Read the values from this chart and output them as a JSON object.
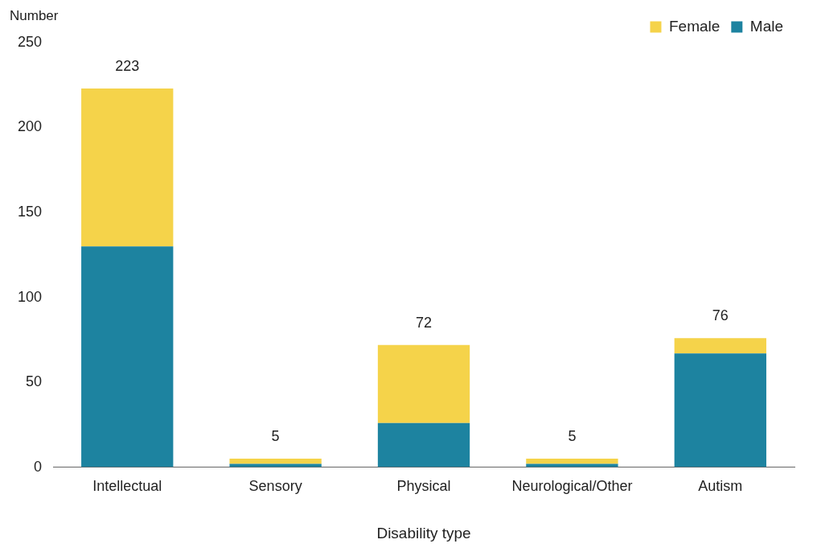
{
  "chart_data": {
    "type": "bar",
    "stacked": true,
    "xlabel": "Disability type",
    "ylabel": "Number",
    "categories": [
      "Intellectual",
      "Sensory",
      "Physical",
      "Neurological/Other",
      "Autism"
    ],
    "series": [
      {
        "name": "Male",
        "color": "#1d83a0",
        "values": [
          130,
          2,
          26,
          2,
          67
        ]
      },
      {
        "name": "Female",
        "color": "#f5d34a",
        "values": [
          93,
          3,
          46,
          3,
          9
        ]
      }
    ],
    "totals": [
      "223",
      "5",
      "72",
      "5",
      "76"
    ],
    "ylim": [
      0,
      250
    ],
    "yticks": [
      0,
      50,
      100,
      150,
      200,
      250
    ],
    "grid": false,
    "legend": "top right"
  }
}
